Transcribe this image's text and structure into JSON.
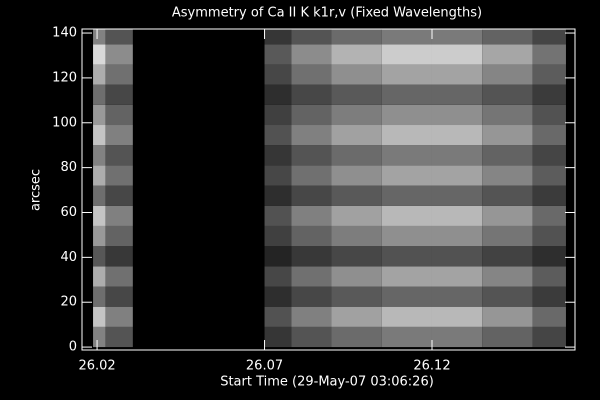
{
  "chart_data": {
    "type": "heatmap",
    "title": "Asymmetry of Ca II K k1r,v (Fixed Wavelengths)",
    "x_label": "Start Time (29-May-07 03:06:26)",
    "y_label": "arcsec",
    "xlim": [
      26.0155,
      26.1627
    ],
    "ylim": [
      -1.3,
      141.8
    ],
    "xticks": [
      26.02,
      26.07,
      26.12
    ],
    "yticks": [
      0,
      20,
      40,
      60,
      80,
      100,
      120,
      140
    ],
    "x_edges": [
      26.0188,
      26.0225,
      26.0307,
      26.07,
      26.078,
      26.09,
      26.105,
      26.12,
      26.135,
      26.15,
      26.16
    ],
    "y_edges": [
      0,
      9,
      18,
      27,
      36,
      45,
      54,
      63,
      72,
      81,
      90,
      99,
      108,
      117,
      126,
      135,
      144
    ],
    "z": [
      [
        0.51,
        0.33,
        0,
        0.21,
        0.33,
        0.42,
        0.48,
        0.48,
        0.39,
        0.27
      ],
      [
        0.77,
        0.5,
        0,
        0.32,
        0.5,
        0.63,
        0.72,
        0.72,
        0.59,
        0.41
      ],
      [
        0.43,
        0.28,
        0,
        0.18,
        0.28,
        0.35,
        0.4,
        0.4,
        0.33,
        0.23
      ],
      [
        0.68,
        0.44,
        0,
        0.28,
        0.44,
        0.56,
        0.64,
        0.64,
        0.52,
        0.36
      ],
      [
        0.34,
        0.22,
        0,
        0.14,
        0.22,
        0.28,
        0.32,
        0.32,
        0.26,
        0.18
      ],
      [
        0.6,
        0.39,
        0,
        0.25,
        0.39,
        0.49,
        0.56,
        0.56,
        0.46,
        0.32
      ],
      [
        0.77,
        0.5,
        0,
        0.32,
        0.5,
        0.63,
        0.72,
        0.72,
        0.59,
        0.41
      ],
      [
        0.43,
        0.28,
        0,
        0.18,
        0.28,
        0.35,
        0.4,
        0.4,
        0.33,
        0.23
      ],
      [
        0.68,
        0.44,
        0,
        0.28,
        0.44,
        0.56,
        0.64,
        0.64,
        0.52,
        0.36
      ],
      [
        0.51,
        0.33,
        0,
        0.21,
        0.33,
        0.42,
        0.48,
        0.48,
        0.39,
        0.27
      ],
      [
        0.77,
        0.5,
        0,
        0.32,
        0.5,
        0.63,
        0.72,
        0.72,
        0.59,
        0.41
      ],
      [
        0.6,
        0.39,
        0,
        0.25,
        0.39,
        0.49,
        0.56,
        0.56,
        0.46,
        0.32
      ],
      [
        0.43,
        0.28,
        0,
        0.18,
        0.28,
        0.35,
        0.4,
        0.4,
        0.33,
        0.23
      ],
      [
        0.68,
        0.44,
        0,
        0.28,
        0.44,
        0.56,
        0.64,
        0.64,
        0.52,
        0.36
      ],
      [
        0.85,
        0.55,
        0,
        0.35,
        0.55,
        0.7,
        0.8,
        0.8,
        0.65,
        0.45
      ],
      [
        0.51,
        0.33,
        0,
        0.21,
        0.33,
        0.42,
        0.48,
        0.48,
        0.39,
        0.27
      ]
    ]
  }
}
